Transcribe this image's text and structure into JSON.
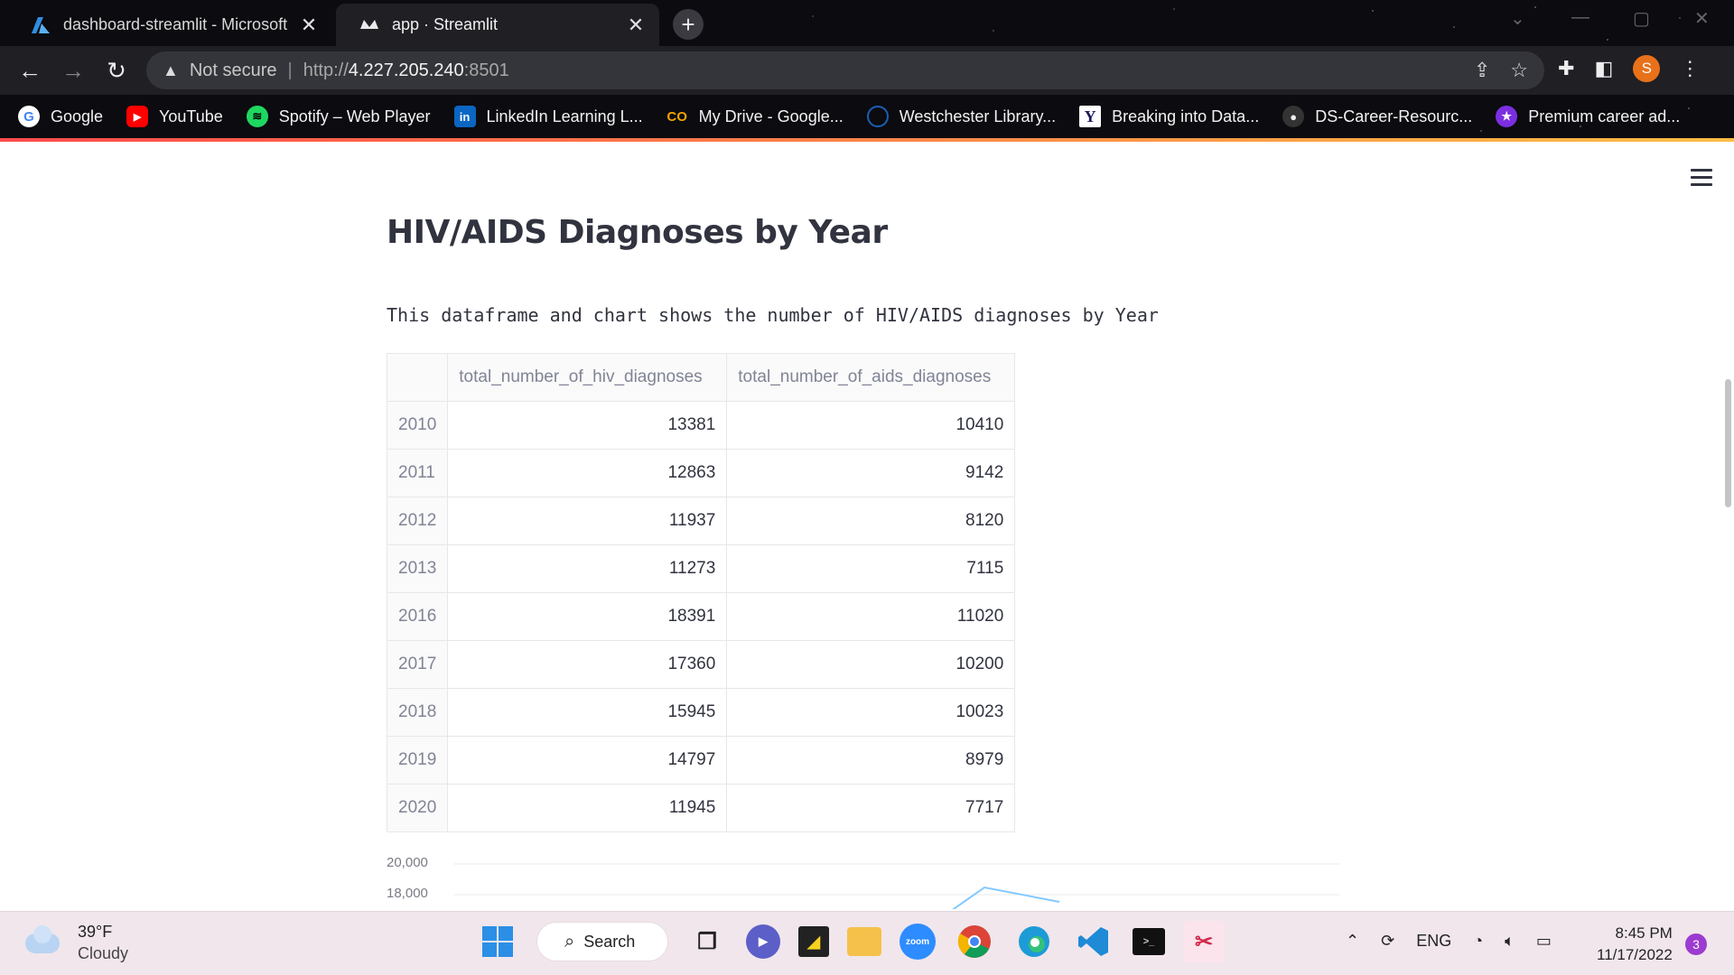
{
  "browser": {
    "tabs": [
      {
        "label": "dashboard-streamlit - Microsoft",
        "icon": "azure-icon"
      },
      {
        "label": "app · Streamlit",
        "icon": "streamlit-icon"
      }
    ],
    "omnibox": {
      "security_label": "Not secure",
      "url_scheme": "http://",
      "url_host": "4.227.205.240",
      "url_port": ":8501"
    },
    "profile_initial": "S",
    "bookmarks": [
      {
        "label": "Google",
        "icon": "google-icon"
      },
      {
        "label": "YouTube",
        "icon": "youtube-icon"
      },
      {
        "label": "Spotify – Web Player",
        "icon": "spotify-icon"
      },
      {
        "label": "LinkedIn Learning L...",
        "icon": "linkedin-icon"
      },
      {
        "label": "My Drive - Google...",
        "icon": "coursera-icon"
      },
      {
        "label": "Westchester Library...",
        "icon": "library-icon"
      },
      {
        "label": "Breaking into Data...",
        "icon": "ycombinator-icon"
      },
      {
        "label": "DS-Career-Resourc...",
        "icon": "github-icon"
      },
      {
        "label": "Premium career ad...",
        "icon": "star-icon"
      }
    ]
  },
  "page": {
    "title": "HIV/AIDS Diagnoses by Year",
    "description": "This dataframe and chart shows the number of HIV/AIDS diagnoses by Year",
    "dataframe": {
      "columns": [
        "",
        "total_number_of_hiv_diagnoses",
        "total_number_of_aids_diagnoses"
      ],
      "rows": [
        {
          "year": "2010",
          "hiv": "13381",
          "aids": "10410"
        },
        {
          "year": "2011",
          "hiv": "12863",
          "aids": "9142"
        },
        {
          "year": "2012",
          "hiv": "11937",
          "aids": "8120"
        },
        {
          "year": "2013",
          "hiv": "11273",
          "aids": "7115"
        },
        {
          "year": "2016",
          "hiv": "18391",
          "aids": "11020"
        },
        {
          "year": "2017",
          "hiv": "17360",
          "aids": "10200"
        },
        {
          "year": "2018",
          "hiv": "15945",
          "aids": "10023"
        },
        {
          "year": "2019",
          "hiv": "14797",
          "aids": "8979"
        },
        {
          "year": "2020",
          "hiv": "11945",
          "aids": "7717"
        }
      ]
    },
    "chart_ticks": [
      "20,000",
      "18,000"
    ]
  },
  "taskbar": {
    "weather_temp": "39°F",
    "weather_desc": "Cloudy",
    "search_label": "Search",
    "lang": "ENG",
    "time": "8:45 PM",
    "date": "11/17/2022",
    "notifications": "3"
  },
  "colors": {
    "accent_line_start": "#ff4b4b",
    "accent_line_end": "#ffbd45",
    "chart_line": "#83c9ff"
  }
}
